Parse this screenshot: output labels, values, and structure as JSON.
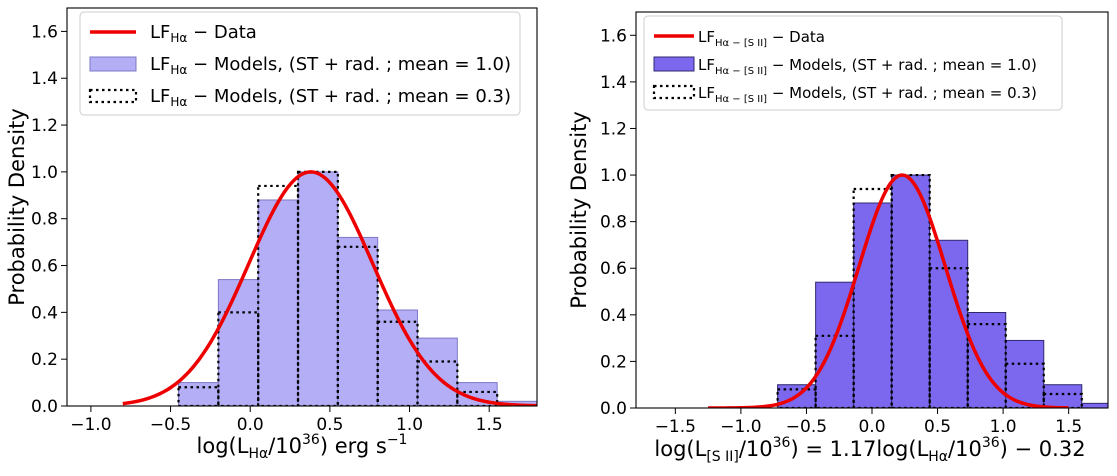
{
  "charts": [
    {
      "type": "bar",
      "ylabel": "Probability Density",
      "xlabel": "log(L_{Hα}/10^{36}) erg s^{-1}",
      "xlabel_parts": {
        "pre": "log(L",
        "sub": "Hα",
        "mid": "/10",
        "sup": "36",
        "post": ") erg s",
        "sup2": "−1"
      },
      "legend": {
        "data": {
          "pre": "LF",
          "sub": "Hα",
          "post": " − Data"
        },
        "model1": {
          "pre": "LF",
          "sub": "Hα",
          "post": " − Models, (ST + rad. ; mean = 1.0)"
        },
        "model2": {
          "pre": "LF",
          "sub": "Hα",
          "post": " − Models, (ST + rad. ; mean = 0.3)"
        }
      },
      "chart_data": {
        "type": "bar",
        "xlim": [
          -1.15,
          1.8
        ],
        "ylim": [
          0,
          1.7
        ],
        "xticks": [
          -1.0,
          -0.5,
          0.0,
          0.5,
          1.0,
          1.5
        ],
        "xtick_labels": [
          "−1.0",
          "−0.5",
          "0.0",
          "0.5",
          "1.0",
          "1.5"
        ],
        "yticks": [
          0.0,
          0.2,
          0.4,
          0.6,
          0.8,
          1.0,
          1.2,
          1.4,
          1.6
        ],
        "ytick_labels": [
          "0.0",
          "0.2",
          "0.4",
          "0.6",
          "0.8",
          "1.0",
          "1.2",
          "1.4",
          "1.6"
        ],
        "bin_edges": [
          -0.7,
          -0.45,
          -0.2,
          0.05,
          0.3,
          0.55,
          0.8,
          1.05,
          1.3,
          1.55,
          1.8
        ],
        "series": [
          {
            "name": "LF Hα − Models, (ST + rad. ; mean = 1.0)",
            "kind": "filled",
            "values": [
              0.0,
              0.1,
              0.54,
              0.88,
              1.0,
              0.72,
              0.41,
              0.29,
              0.1,
              0.02
            ]
          },
          {
            "name": "LF Hα − Models, (ST + rad. ; mean = 0.3)",
            "kind": "dotted",
            "values": [
              0.0,
              0.08,
              0.4,
              0.94,
              1.0,
              0.68,
              0.36,
              0.19,
              0.06,
              0.0
            ]
          }
        ],
        "curve": {
          "name": "LF Hα − Data",
          "mu": 0.38,
          "sigma": 0.39,
          "peak": 1.0,
          "x_start": -0.8,
          "x_end": 1.8
        },
        "colors": {
          "fill": "#b3aef5",
          "edge": "#7e78c7",
          "curve": "#ee0000",
          "dotted": "#000000"
        }
      }
    },
    {
      "type": "bar",
      "ylabel": "Probability Density",
      "xlabel": "log(L_{[S II]}/10^{36}) = 1.17log(L_{Hα}/10^{36}) − 0.32",
      "xlabel_parts": {
        "pre": "log(L",
        "sub": "[S II]",
        "mid": "/10",
        "sup": "36",
        "post": ") = 1.17log(L",
        "sub2": "Hα",
        "mid2": "/10",
        "sup2": "36",
        "post2": ") − 0.32"
      },
      "legend": {
        "data": {
          "pre": "LF",
          "sub": "Hα − [S II]",
          "post": " − Data"
        },
        "model1": {
          "pre": "LF",
          "sub": "Hα − [S II]",
          "post": " − Models, (ST + rad. ; mean = 1.0)"
        },
        "model2": {
          "pre": "LF",
          "sub": "Hα − [S II]",
          "post": " − Models, (ST + rad. ; mean = 0.3)"
        }
      },
      "chart_data": {
        "type": "bar",
        "xlim": [
          -1.8,
          1.8
        ],
        "ylim": [
          0,
          1.7
        ],
        "xticks": [
          -1.5,
          -1.0,
          -0.5,
          0.0,
          0.5,
          1.0,
          1.5
        ],
        "xtick_labels": [
          "−1.5",
          "−1.0",
          "−0.5",
          "0.0",
          "0.5",
          "1.0",
          "1.5"
        ],
        "yticks": [
          0.0,
          0.2,
          0.4,
          0.6,
          0.8,
          1.0,
          1.2,
          1.4,
          1.6
        ],
        "ytick_labels": [
          "0.0",
          "0.2",
          "0.4",
          "0.6",
          "0.8",
          "1.0",
          "1.2",
          "1.4",
          "1.6"
        ],
        "bin_edges": [
          -1.01,
          -0.72,
          -0.43,
          -0.14,
          0.15,
          0.44,
          0.73,
          1.02,
          1.31,
          1.6,
          1.8
        ],
        "series": [
          {
            "name": "LF Hα − [S II] − Models, (ST + rad. ; mean = 1.0)",
            "kind": "filled",
            "values": [
              0.0,
              0.1,
              0.54,
              0.88,
              1.0,
              0.72,
              0.41,
              0.29,
              0.1,
              0.02
            ]
          },
          {
            "name": "LF Hα − [S II] − Models, (ST + rad. ; mean = 0.3)",
            "kind": "dotted",
            "values": [
              0.0,
              0.08,
              0.31,
              0.94,
              1.0,
              0.6,
              0.36,
              0.19,
              0.06,
              0.0
            ]
          }
        ],
        "curve": {
          "name": "LF Hα − [S II] − Data",
          "mu": 0.23,
          "sigma": 0.33,
          "peak": 1.0,
          "x_start": -1.25,
          "x_end": 1.5
        },
        "colors": {
          "fill": "#7b68ee",
          "edge": "#2e2a6e",
          "curve": "#ee0000",
          "dotted": "#000000"
        }
      }
    }
  ]
}
